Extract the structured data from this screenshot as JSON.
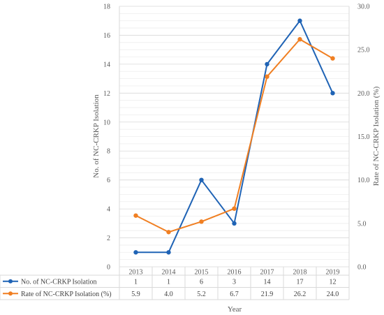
{
  "chart_data": {
    "type": "line",
    "categories": [
      "2013",
      "2014",
      "2015",
      "2016",
      "2017",
      "2018",
      "2019"
    ],
    "series": [
      {
        "name": "No. of NC-CRKP Isolation",
        "axis": "left",
        "values": [
          1,
          1,
          6,
          3,
          14,
          17,
          12
        ],
        "labels": [
          "1",
          "1",
          "6",
          "3",
          "14",
          "17",
          "12"
        ],
        "color": "#1F63B5"
      },
      {
        "name": "Rate of NC-CRKP Isolation (%)",
        "axis": "right",
        "values": [
          5.9,
          4.0,
          5.2,
          6.7,
          21.9,
          26.2,
          24.0
        ],
        "labels": [
          "5.9",
          "4.0",
          "5.2",
          "6.7",
          "21.9",
          "26.2",
          "24.0"
        ],
        "color": "#F07F22"
      }
    ],
    "xlabel": "Year",
    "ylabel": "No. of NC-CRKP Isolation",
    "ylabel_right": "Rate of NC-CRKP Isolation (%)",
    "ylim": [
      0,
      18
    ],
    "ylim_right": [
      0,
      30
    ],
    "yticks": [
      "0",
      "2",
      "4",
      "6",
      "8",
      "10",
      "12",
      "14",
      "16",
      "18"
    ],
    "yticks_right": [
      "0.0",
      "5.0",
      "10.0",
      "15.0",
      "20.0",
      "25.0",
      "30.0"
    ],
    "grid": true,
    "data_table": true
  }
}
